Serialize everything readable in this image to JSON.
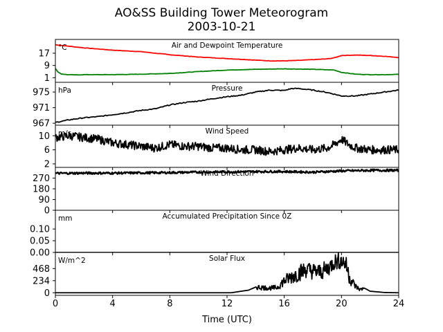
{
  "chart_data": {
    "type": "line",
    "title": "AO&SS Building Tower Meteorogram",
    "subtitle": "2003-10-21",
    "xlabel": "Time (UTC)",
    "xlim": [
      0,
      24
    ],
    "xticks": [
      0,
      4,
      8,
      12,
      16,
      20,
      24
    ],
    "panels": [
      {
        "title": "Air and Dewpoint Temperature",
        "unit": "°C",
        "ylim": [
          -2,
          26
        ],
        "yticks": [
          1,
          9,
          17
        ],
        "series": [
          {
            "name": "Air Temperature",
            "color": "#ff0000",
            "x": [
              0,
              1,
              2,
              4,
              6,
              8,
              10,
              12,
              14,
              15,
              16,
              17,
              18,
              19,
              19.5,
              20,
              21,
              22,
              23,
              24
            ],
            "y": [
              22.5,
              21.5,
              20.5,
              19,
              18,
              16,
              14.5,
              13.5,
              12.5,
              12,
              12,
              12.3,
              12.8,
              13.3,
              14,
              15.5,
              15.8,
              15.5,
              15,
              14.2
            ]
          },
          {
            "name": "Dewpoint Temperature",
            "color": "#008000",
            "x": [
              0,
              0.15,
              0.4,
              0.8,
              1.5,
              2,
              4,
              6,
              8,
              10,
              12,
              14,
              16,
              18,
              19.5,
              20,
              21,
              22,
              23,
              24
            ],
            "y": [
              7,
              5,
              3.5,
              3,
              2.8,
              3,
              3,
              3.3,
              3.8,
              5,
              6,
              6.5,
              6.8,
              6.5,
              6,
              4.5,
              3.3,
              3,
              3,
              3.2
            ]
          }
        ]
      },
      {
        "title": "Pressure",
        "unit": "hPa",
        "ylim": [
          966.5,
          977.5
        ],
        "yticks": [
          967,
          971,
          975
        ],
        "series": [
          {
            "name": "Pressure",
            "color": "#000000",
            "x": [
              0,
              1,
              2,
              3,
              4,
              5,
              6,
              7,
              8,
              9,
              10,
              11,
              12,
              13,
              14,
              15,
              16,
              16.5,
              17,
              18,
              19,
              20,
              21,
              22,
              23,
              24
            ],
            "y": [
              967.2,
              967.9,
              968.4,
              968.7,
              969.2,
              969.7,
              970.3,
              970.7,
              971.7,
              972.3,
              972.7,
              973.3,
              973.8,
              974.2,
              975,
              975.5,
              975.4,
              975.9,
              975.9,
              975.5,
              974.9,
              974,
              974,
              974.5,
              975,
              975.5
            ]
          }
        ]
      },
      {
        "title": "Wind Speed",
        "unit": "m/s",
        "ylim": [
          1,
          13
        ],
        "yticks": [
          2,
          6,
          10
        ],
        "series": [
          {
            "name": "Wind Speed",
            "color": "#000000",
            "x": [
              0,
              1,
              2,
              3,
              4,
              5,
              6,
              7,
              8,
              9,
              10,
              11,
              12,
              13,
              14,
              15,
              16,
              17,
              18,
              19,
              19.5,
              20,
              20.5,
              21,
              22,
              23,
              24
            ],
            "y": [
              9.5,
              10,
              9.5,
              9,
              8,
              7.5,
              7,
              6.5,
              7.5,
              7,
              7,
              6.5,
              6.5,
              6,
              6,
              5.5,
              6,
              6.5,
              6,
              6.5,
              7.5,
              9,
              7.5,
              6.5,
              6,
              6,
              6
            ]
          }
        ]
      },
      {
        "title": "Wind Direction",
        "unit": "",
        "ylim": [
          0,
          360
        ],
        "yticks": [
          0,
          90,
          180,
          270
        ],
        "series": [
          {
            "name": "Wind Direction",
            "color": "#000000",
            "x": [
              0,
              2,
              4,
              6,
              8,
              10,
              12,
              14,
              16,
              18,
              20,
              22,
              24
            ],
            "y": [
              310,
              312,
              312,
              314,
              316,
              320,
              322,
              325,
              325,
              320,
              330,
              335,
              335
            ]
          }
        ]
      },
      {
        "title": "Accumulated Precipitation Since 0Z",
        "unit": "mm",
        "ylim": [
          0,
          0.18
        ],
        "yticks": [
          0.0,
          0.05,
          0.1
        ],
        "ytick_labels": [
          "0.00",
          "0.05",
          "0.10"
        ],
        "series": [
          {
            "name": "Accumulated Precipitation",
            "color": "#000000",
            "x": [
              0,
              24
            ],
            "y": [
              0,
              0
            ]
          }
        ]
      },
      {
        "title": "Solar Flux",
        "unit": "W/m^2",
        "ylim": [
          -50,
          780
        ],
        "yticks": [
          0,
          234,
          468
        ],
        "series": [
          {
            "name": "Solar Flux",
            "color": "#000000",
            "x": [
              0,
              12.3,
              13,
              13.5,
              14,
              15,
              15.5,
              16,
              16.5,
              17,
              17.5,
              18,
              18.5,
              19,
              19.5,
              20,
              20.3,
              20.6,
              21,
              21.3,
              21.6,
              22,
              23,
              24
            ],
            "y": [
              0,
              0,
              30,
              50,
              110,
              90,
              100,
              230,
              310,
              380,
              450,
              420,
              400,
              460,
              600,
              620,
              560,
              270,
              120,
              60,
              90,
              30,
              5,
              0
            ]
          }
        ]
      }
    ]
  }
}
